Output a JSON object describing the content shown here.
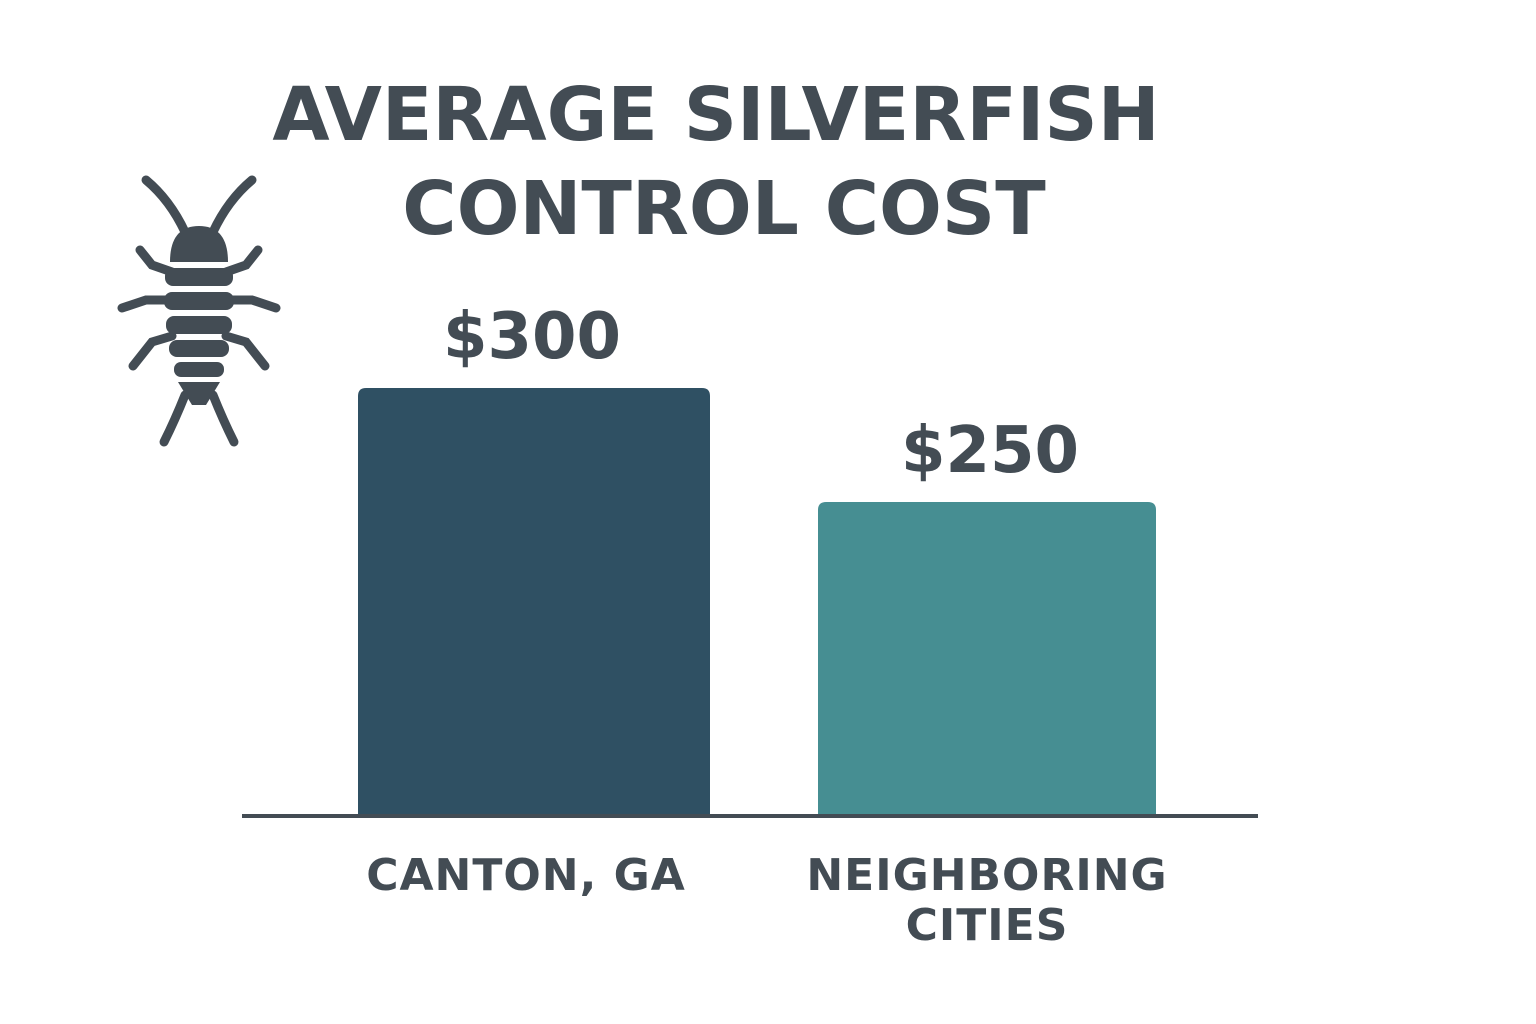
{
  "chart_data": {
    "type": "bar",
    "title_lines": [
      "AVERAGE SILVERFISH",
      "CONTROL COST"
    ],
    "categories": [
      [
        "CANTON, GA"
      ],
      [
        "NEIGHBORING",
        "CITIES"
      ]
    ],
    "values": [
      300,
      250
    ],
    "value_labels": [
      "$300",
      "$250"
    ],
    "bar_colors": [
      "#2f5063",
      "#468e92"
    ],
    "ylim": [
      0,
      400
    ],
    "grid": false,
    "legend": "none",
    "xlabel": "",
    "ylabel": ""
  },
  "decoration": {
    "icon": "silverfish-icon",
    "text_color": "#434c54"
  }
}
